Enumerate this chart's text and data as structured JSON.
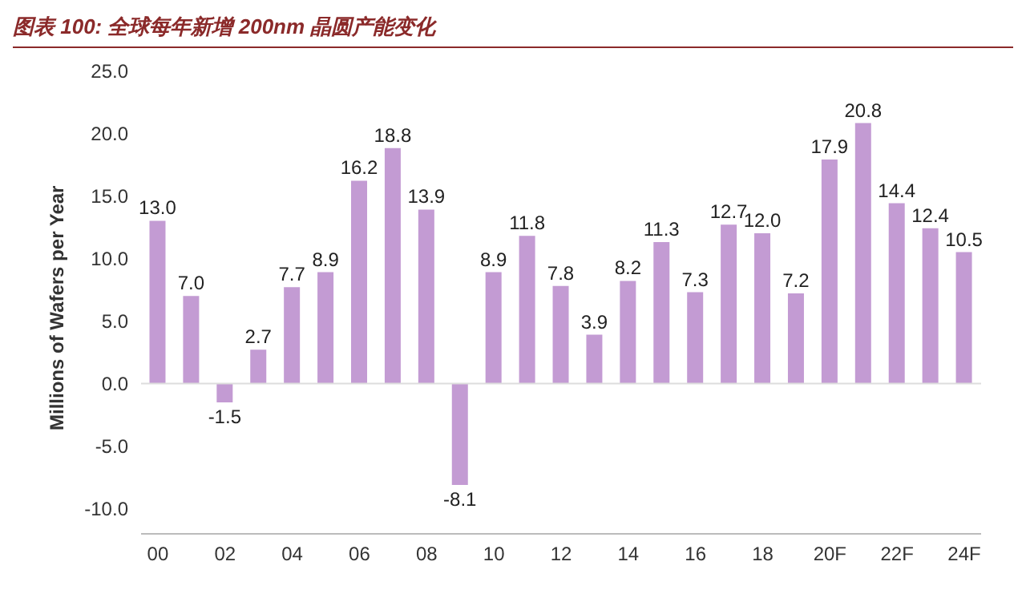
{
  "chart_data": {
    "type": "bar",
    "title": "图表 100: 全球每年新增 200nm 晶圆产能变化",
    "ylabel": "Millions of Wafers per Year",
    "categories": [
      "00",
      null,
      "02",
      null,
      "04",
      null,
      "06",
      null,
      "08",
      null,
      "10",
      null,
      "12",
      null,
      "14",
      null,
      "16",
      null,
      "18",
      null,
      "20F",
      null,
      "22F",
      null,
      "24F"
    ],
    "values": [
      13.0,
      7.0,
      -1.5,
      2.7,
      7.7,
      8.9,
      16.2,
      18.8,
      13.9,
      -8.1,
      8.9,
      11.8,
      7.8,
      3.9,
      8.2,
      11.3,
      7.3,
      12.7,
      12.0,
      7.2,
      17.9,
      20.8,
      14.4,
      12.4,
      10.5
    ],
    "value_labels": [
      "13.0",
      "7.0",
      "-1.5",
      "2.7",
      "7.7",
      "8.9",
      "16.2",
      "18.8",
      "13.9",
      "-8.1",
      "8.9",
      "11.8",
      "7.8",
      "3.9",
      "8.2",
      "11.3",
      "7.3",
      "12.7",
      "12.0",
      "7.2",
      "17.9",
      "20.8",
      "14.4",
      "12.4",
      "10.5"
    ],
    "color": "#c39bd3",
    "ylim": [
      -12,
      25
    ],
    "yticks": [
      {
        "value": -10,
        "label": "-10.0"
      },
      {
        "value": -5,
        "label": "-5.0"
      },
      {
        "value": 0,
        "label": "0.0"
      },
      {
        "value": 5,
        "label": "5.0"
      },
      {
        "value": 10,
        "label": "10.0"
      },
      {
        "value": 15,
        "label": "15.0"
      },
      {
        "value": 20,
        "label": "20.0"
      },
      {
        "value": 25,
        "label": "25.0"
      }
    ]
  }
}
